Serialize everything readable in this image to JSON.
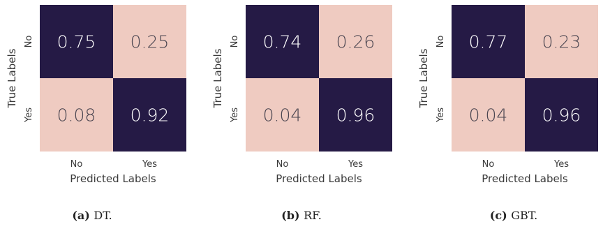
{
  "colors": {
    "high": "#251a45",
    "low": "#efcbc1",
    "text_on_high": "#ffffff",
    "text_on_low": "#4a4550"
  },
  "chart_data": [
    {
      "type": "heatmap",
      "caption_tag": "(a)",
      "caption_name": "DT.",
      "xlabel": "Predicted Labels",
      "ylabel": "True Labels",
      "x_ticks": [
        "No",
        "Yes"
      ],
      "y_ticks": [
        "No",
        "Yes"
      ],
      "values": [
        [
          0.75,
          0.25
        ],
        [
          0.08,
          0.92
        ]
      ],
      "value_labels": [
        [
          "0.75",
          "0.25"
        ],
        [
          "0.08",
          "0.92"
        ]
      ]
    },
    {
      "type": "heatmap",
      "caption_tag": "(b)",
      "caption_name": "RF.",
      "xlabel": "Predicted Labels",
      "ylabel": "True Labels",
      "x_ticks": [
        "No",
        "Yes"
      ],
      "y_ticks": [
        "No",
        "Yes"
      ],
      "values": [
        [
          0.74,
          0.26
        ],
        [
          0.04,
          0.96
        ]
      ],
      "value_labels": [
        [
          "0.74",
          "0.26"
        ],
        [
          "0.04",
          "0.96"
        ]
      ]
    },
    {
      "type": "heatmap",
      "caption_tag": "(c)",
      "caption_name": "GBT.",
      "xlabel": "Predicted Labels",
      "ylabel": "True Labels",
      "x_ticks": [
        "No",
        "Yes"
      ],
      "y_ticks": [
        "No",
        "Yes"
      ],
      "values": [
        [
          0.77,
          0.23
        ],
        [
          0.04,
          0.96
        ]
      ],
      "value_labels": [
        [
          "0.77",
          "0.23"
        ],
        [
          "0.04",
          "0.96"
        ]
      ]
    }
  ]
}
